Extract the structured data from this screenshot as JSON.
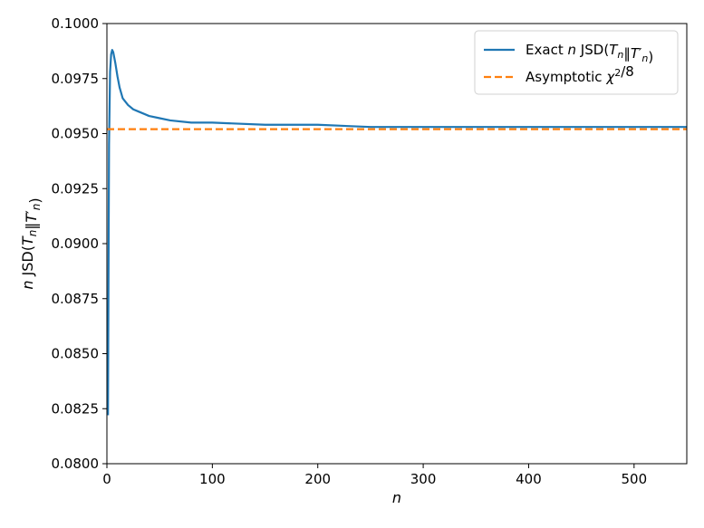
{
  "chart_data": {
    "type": "line",
    "xlabel": "n",
    "ylabel": "n JSD(T_n‖T′_n)",
    "xlim": [
      0,
      550
    ],
    "ylim": [
      0.08,
      0.1
    ],
    "x_ticks": [
      "0",
      "100",
      "200",
      "300",
      "400",
      "500"
    ],
    "y_ticks": [
      "0.0800",
      "0.0825",
      "0.0850",
      "0.0875",
      "0.0900",
      "0.0925",
      "0.0950",
      "0.0975",
      "0.1000"
    ],
    "legend_position": "top-right",
    "grid": false,
    "series": [
      {
        "name": "Exact n JSD(T_n‖T′_n)",
        "color": "#1f77b4",
        "style": "solid",
        "x": [
          1,
          2,
          3,
          4,
          5,
          6,
          8,
          10,
          12,
          15,
          20,
          25,
          30,
          40,
          50,
          60,
          80,
          100,
          150,
          200,
          250,
          300,
          350,
          400,
          450,
          500,
          550
        ],
        "y": [
          0.0822,
          0.0945,
          0.0978,
          0.0986,
          0.0988,
          0.0987,
          0.0982,
          0.0976,
          0.0971,
          0.0966,
          0.0963,
          0.0961,
          0.096,
          0.0958,
          0.0957,
          0.0956,
          0.0955,
          0.0955,
          0.0954,
          0.0954,
          0.0953,
          0.0953,
          0.0953,
          0.0953,
          0.0953,
          0.0953,
          0.0953
        ]
      },
      {
        "name": "Asymptotic χ²/8",
        "color": "#ff7f0e",
        "style": "dashed",
        "x": [
          0,
          550
        ],
        "y": [
          0.0952,
          0.0952
        ]
      }
    ]
  }
}
